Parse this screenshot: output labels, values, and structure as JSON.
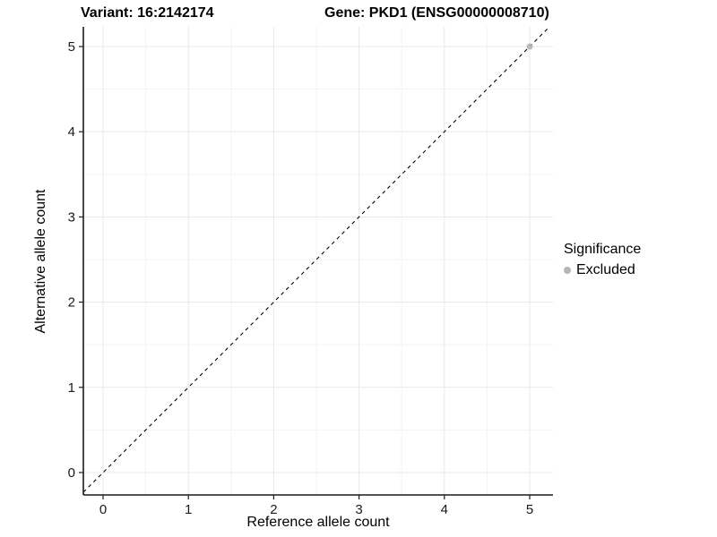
{
  "titles": {
    "variant": "Variant: 16:2142174",
    "gene": "Gene: PKD1 (ENSG00000008710)"
  },
  "legend": {
    "title": "Significance",
    "position": "right",
    "items": [
      {
        "label": "Excluded",
        "color": "#b5b5b5"
      }
    ]
  },
  "colors": {
    "background": "#ffffff",
    "grid_major": "#e8e8e8",
    "grid_minor": "#f3f3f3",
    "axis": "#1a1a1a",
    "tick_text": "#1a1a1a",
    "point": "#b5b5b5",
    "ref_line": "#000000"
  },
  "chart_data": {
    "type": "scatter",
    "xlabel": "Reference allele count",
    "ylabel": "Alternative allele count",
    "xlim": [
      -0.231,
      5.273
    ],
    "ylim": [
      -0.263,
      5.231
    ],
    "xticks": [
      0,
      1,
      2,
      3,
      4,
      5
    ],
    "yticks": [
      0,
      1,
      2,
      3,
      4,
      5
    ],
    "minor_xticks": [
      0.5,
      1.5,
      2.5,
      3.5,
      4.5
    ],
    "minor_yticks": [
      0.5,
      1.5,
      2.5,
      3.5,
      4.5
    ],
    "grid": true,
    "series": [
      {
        "name": "Excluded",
        "color": "#b5b5b5",
        "points": [
          [
            5,
            5
          ]
        ]
      }
    ],
    "reference_line": {
      "kind": "diagonal-identity",
      "style": "dashed",
      "color": "#000000"
    }
  }
}
